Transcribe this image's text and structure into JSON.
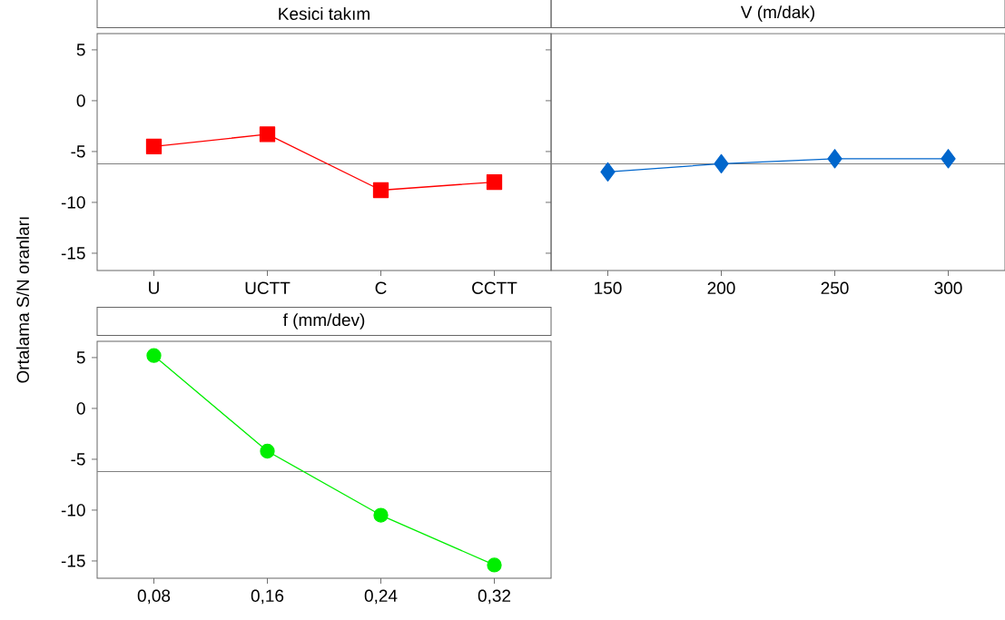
{
  "chart_data": [
    {
      "type": "line",
      "title": "Kesici takım",
      "ylabel": "Ortalama S/N oranları",
      "categories": [
        "U",
        "UCTT",
        "C",
        "CCTT"
      ],
      "values": [
        -4.5,
        -3.3,
        -8.8,
        -8.0
      ],
      "color": "#ff0000",
      "marker": "square",
      "ylim": [
        -16.7,
        6.6
      ],
      "yticks": [
        5,
        0,
        -5,
        -10,
        -15
      ],
      "ref_lines": [
        {
          "axis": "y",
          "value": -6.2,
          "color": "#808080"
        }
      ]
    },
    {
      "type": "line",
      "title": "V (m/dak)",
      "categories": [
        "150",
        "200",
        "250",
        "300"
      ],
      "values": [
        -7.0,
        -6.2,
        -5.7,
        -5.7
      ],
      "color": "#0066cc",
      "marker": "diamond",
      "ylim": [
        -16.7,
        6.6
      ],
      "yticks": [
        5,
        0,
        -5,
        -10,
        -15
      ],
      "ref_lines": [
        {
          "axis": "y",
          "value": -6.2,
          "color": "#808080"
        }
      ],
      "tick_labels": "x"
    },
    {
      "type": "line",
      "title": "f (mm/dev)",
      "categories": [
        "0,08",
        "0,16",
        "0,24",
        "0,32"
      ],
      "values": [
        5.2,
        -4.2,
        -10.5,
        -15.4
      ],
      "color": "#00ee00",
      "marker": "circle",
      "ylim": [
        -16.7,
        6.6
      ],
      "yticks": [
        5,
        0,
        -5,
        -10,
        -15
      ],
      "ref_lines": [
        {
          "axis": "y",
          "value": -6.2,
          "color": "#808080"
        }
      ]
    }
  ]
}
